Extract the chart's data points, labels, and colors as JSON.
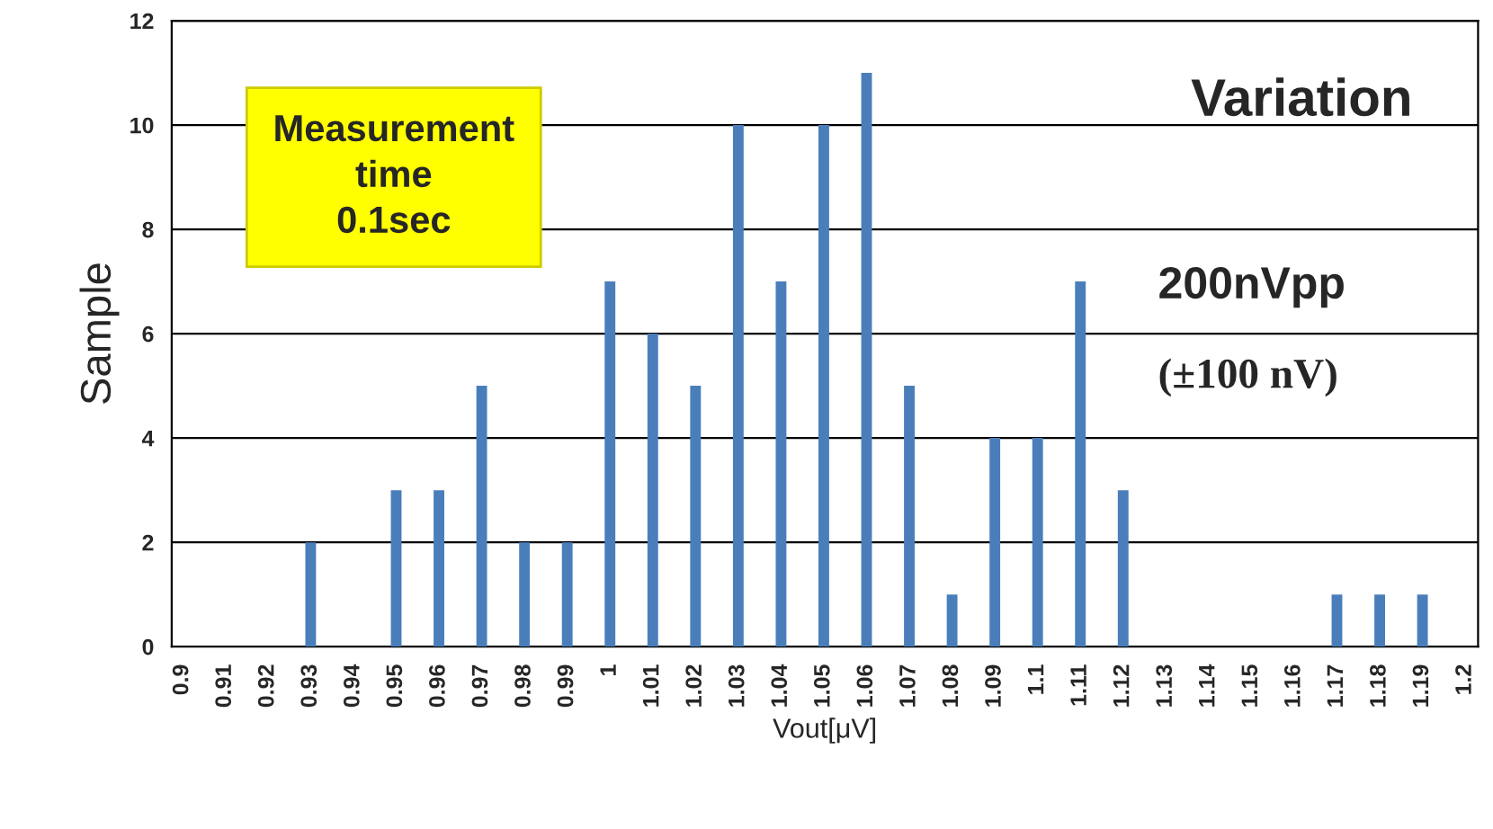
{
  "chart_data": {
    "type": "bar",
    "xlabel": "Vout[μV]",
    "ylabel": "Sample",
    "categories": [
      "0.9",
      "0.91",
      "0.92",
      "0.93",
      "0.94",
      "0.95",
      "0.96",
      "0.97",
      "0.98",
      "0.99",
      "1",
      "1.01",
      "1.02",
      "1.03",
      "1.04",
      "1.05",
      "1.06",
      "1.07",
      "1.08",
      "1.09",
      "1.1",
      "1.11",
      "1.12",
      "1.13",
      "1.14",
      "1.15",
      "1.16",
      "1.17",
      "1.18",
      "1.19",
      "1.2"
    ],
    "values": [
      0,
      0,
      0,
      2,
      0,
      3,
      3,
      5,
      2,
      2,
      7,
      6,
      5,
      10,
      7,
      10,
      11,
      5,
      1,
      4,
      4,
      7,
      3,
      0,
      0,
      0,
      0,
      1,
      1,
      1,
      0
    ],
    "color": "#4a7ebb",
    "ylim": [
      0,
      12
    ],
    "yticks": [
      0,
      2,
      4,
      6,
      8,
      10,
      12
    ],
    "grid": "y",
    "annotations": [
      "Measurement\ntime\n0.1sec",
      "Variation",
      "200nVpp",
      "(±100 nV)"
    ]
  }
}
